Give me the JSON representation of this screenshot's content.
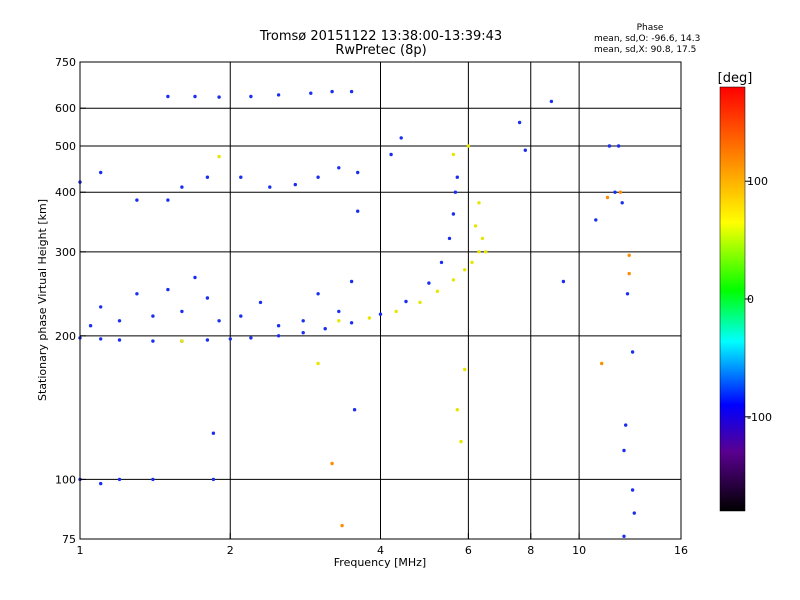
{
  "chart_data": {
    "type": "scatter",
    "title": "Tromsø 20151122 13:38:00-13:39:43",
    "subtitle": "RwPretec (8p)",
    "xlabel": "Frequency [MHz]",
    "ylabel": "Stationary phase Virtual Height [km]",
    "x_scale": "log",
    "y_scale": "log",
    "xlim": [
      1,
      16
    ],
    "ylim": [
      75,
      750
    ],
    "x_ticks": [
      1,
      2,
      4,
      6,
      8,
      10,
      16
    ],
    "x_tick_labels": [
      "1",
      "2",
      "4",
      "6",
      "8",
      "10",
      "16"
    ],
    "x_grid": [
      2,
      4,
      6,
      8,
      10
    ],
    "y_ticks": [
      75,
      100,
      200,
      300,
      400,
      500,
      600,
      750
    ],
    "y_tick_labels": [
      "75",
      "100",
      "200",
      "300",
      "400",
      "500",
      "600",
      "750"
    ],
    "y_grid": [
      100,
      200,
      300,
      400,
      500,
      600
    ],
    "grid": true,
    "phase_stats": {
      "heading": "Phase",
      "line_o": "mean, sd,O: -96.6, 14.3",
      "line_x": "mean, sd,X:  90.8, 17.5"
    },
    "colorbar": {
      "label": "[deg]",
      "range": [
        -180,
        180
      ],
      "ticks": [
        100,
        0,
        -100
      ],
      "tick_labels": [
        "100",
        "0",
        "-100"
      ]
    },
    "series": [
      {
        "mode": "O",
        "phase": -100,
        "color": "#1a2ef0",
        "points": [
          [
            1.0,
            198
          ],
          [
            1.1,
            197
          ],
          [
            1.2,
            196
          ],
          [
            1.4,
            195
          ],
          [
            1.6,
            195
          ],
          [
            1.8,
            196
          ],
          [
            2.0,
            197
          ],
          [
            2.2,
            198
          ],
          [
            2.5,
            200
          ],
          [
            2.8,
            203
          ],
          [
            3.1,
            207
          ],
          [
            3.5,
            213
          ],
          [
            4.0,
            222
          ],
          [
            4.5,
            236
          ],
          [
            5.0,
            258
          ],
          [
            5.3,
            285
          ],
          [
            5.5,
            320
          ],
          [
            5.6,
            360
          ],
          [
            5.65,
            400
          ],
          [
            5.7,
            430
          ],
          [
            1.05,
            210
          ],
          [
            1.1,
            230
          ],
          [
            1.2,
            215
          ],
          [
            1.3,
            245
          ],
          [
            1.4,
            220
          ],
          [
            1.5,
            250
          ],
          [
            1.6,
            225
          ],
          [
            1.7,
            265
          ],
          [
            1.8,
            240
          ],
          [
            1.9,
            215
          ],
          [
            2.1,
            220
          ],
          [
            2.3,
            235
          ],
          [
            2.5,
            210
          ],
          [
            2.8,
            215
          ],
          [
            3.0,
            245
          ],
          [
            3.3,
            225
          ],
          [
            3.5,
            260
          ],
          [
            1.0,
            420
          ],
          [
            1.1,
            440
          ],
          [
            1.3,
            385
          ],
          [
            1.5,
            385
          ],
          [
            1.6,
            410
          ],
          [
            1.8,
            430
          ],
          [
            2.1,
            430
          ],
          [
            2.4,
            410
          ],
          [
            2.7,
            415
          ],
          [
            3.0,
            430
          ],
          [
            3.3,
            450
          ],
          [
            3.6,
            440
          ],
          [
            4.2,
            480
          ],
          [
            4.4,
            520
          ],
          [
            1.5,
            635
          ],
          [
            1.7,
            635
          ],
          [
            1.9,
            633
          ],
          [
            2.2,
            635
          ],
          [
            2.5,
            640
          ],
          [
            2.9,
            645
          ],
          [
            3.2,
            650
          ],
          [
            3.5,
            650
          ],
          [
            1.0,
            100
          ],
          [
            1.1,
            98
          ],
          [
            1.2,
            100
          ],
          [
            1.4,
            100
          ],
          [
            1.85,
            100
          ],
          [
            1.85,
            125
          ]
        ]
      },
      {
        "mode": "X",
        "phase": 90,
        "color": "#e6e600",
        "points": [
          [
            3.3,
            215
          ],
          [
            3.8,
            218
          ],
          [
            4.3,
            225
          ],
          [
            4.8,
            235
          ],
          [
            5.2,
            248
          ],
          [
            5.6,
            262
          ],
          [
            5.9,
            275
          ],
          [
            6.1,
            285
          ],
          [
            6.3,
            300
          ],
          [
            6.4,
            320
          ],
          [
            6.5,
            300
          ],
          [
            5.7,
            140
          ],
          [
            5.8,
            120
          ],
          [
            5.9,
            170
          ],
          [
            6.2,
            340
          ],
          [
            6.3,
            380
          ],
          [
            1.6,
            195
          ],
          [
            1.9,
            475
          ],
          [
            3.0,
            175
          ],
          [
            5.6,
            480
          ],
          [
            6.0,
            500
          ]
        ]
      },
      {
        "mode": "scattered",
        "phase": -100,
        "color": "#1a2ef0",
        "points": [
          [
            11.5,
            500
          ],
          [
            12.0,
            500
          ],
          [
            12.5,
            245
          ],
          [
            12.8,
            185
          ],
          [
            12.4,
            130
          ],
          [
            12.3,
            115
          ],
          [
            12.8,
            95
          ],
          [
            12.9,
            85
          ],
          [
            12.3,
            76
          ],
          [
            11.8,
            400
          ],
          [
            12.2,
            380
          ],
          [
            8.8,
            620
          ],
          [
            7.6,
            560
          ],
          [
            7.8,
            490
          ],
          [
            9.3,
            260
          ],
          [
            10.8,
            350
          ],
          [
            3.55,
            140
          ],
          [
            3.6,
            365
          ]
        ]
      },
      {
        "mode": "scattered",
        "phase": 120,
        "color": "#ff8c00",
        "points": [
          [
            3.2,
            108
          ],
          [
            11.4,
            390
          ],
          [
            11.1,
            175
          ],
          [
            12.1,
            400
          ],
          [
            12.6,
            295
          ],
          [
            12.6,
            270
          ],
          [
            3.35,
            80
          ]
        ]
      }
    ]
  }
}
